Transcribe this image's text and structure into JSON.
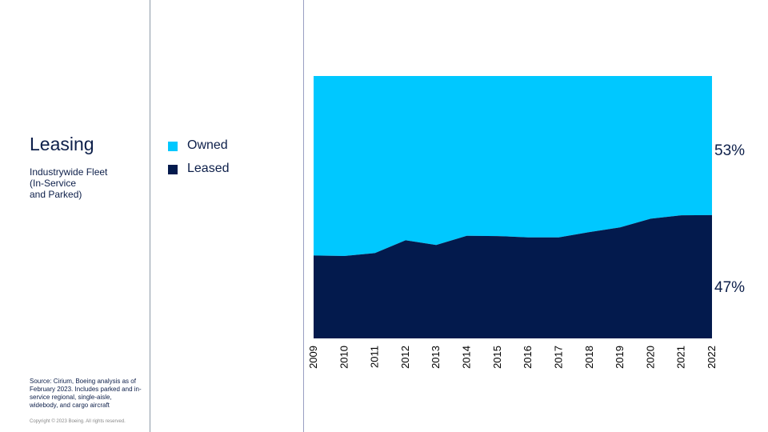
{
  "heading": {
    "title": "Leasing",
    "subtitle_lines": [
      "Industrywide Fleet",
      "(In-Service",
      "and Parked)"
    ]
  },
  "legend": [
    {
      "label": "Owned",
      "color": "#00c8ff"
    },
    {
      "label": "Leased",
      "color": "#031a4d"
    }
  ],
  "footer": {
    "source": "Source: Cirium, Boeing analysis as of February 2023. Includes parked and in-service regional, single-aisle, widebody, and cargo aircraft",
    "copyright": "Copyright © 2023 Boeing. All rights reserved."
  },
  "chart_data": {
    "type": "area",
    "stacked": true,
    "percent": true,
    "x": [
      "2009",
      "2010",
      "2011",
      "2012",
      "2013",
      "2014",
      "2015",
      "2016",
      "2017",
      "2018",
      "2019",
      "2020",
      "2021",
      "2022"
    ],
    "series": [
      {
        "name": "Leased",
        "color": "#031a4d",
        "values": [
          31.6,
          31.4,
          32.5,
          37.4,
          35.6,
          39.1,
          39.0,
          38.5,
          38.5,
          40.5,
          42.3,
          45.6,
          46.9,
          47.0
        ]
      },
      {
        "name": "Owned",
        "color": "#00c8ff",
        "values": [
          68.4,
          68.6,
          67.5,
          62.6,
          64.4,
          60.9,
          61.0,
          61.5,
          61.5,
          59.5,
          57.7,
          54.4,
          53.1,
          53.0
        ]
      }
    ],
    "end_labels": {
      "Owned": "53%",
      "Leased": "47%"
    },
    "ylim": [
      0,
      100
    ],
    "x_tick_rotation": -90,
    "grid": false
  }
}
